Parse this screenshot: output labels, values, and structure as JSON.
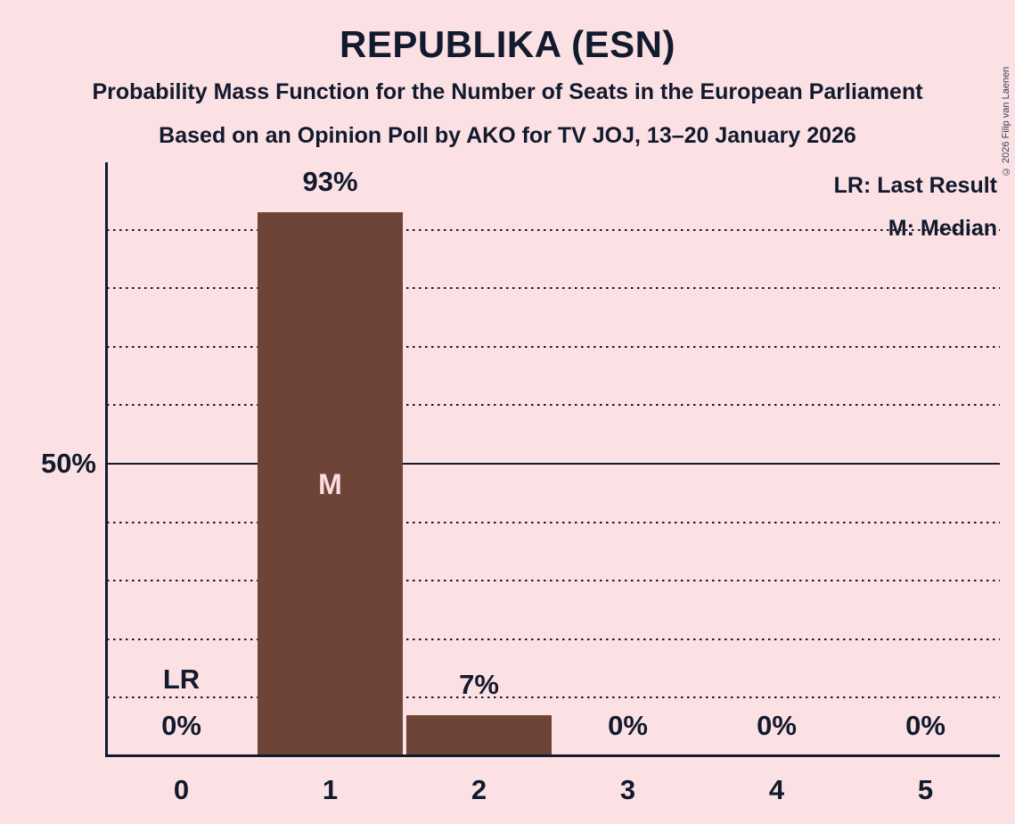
{
  "header": {
    "title": "REPUBLIKA (ESN)",
    "subtitle1": "Probability Mass Function for the Number of Seats in the European Parliament",
    "subtitle2": "Based on an Opinion Poll by AKO for TV JOJ, 13–20 January 2026"
  },
  "copyright": "© 2026 Filip van Laenen",
  "legend": {
    "lr": "LR: Last Result",
    "m": "M: Median"
  },
  "colors": {
    "background": "#fce1e4",
    "bar": "#6f4438",
    "text": "#121a2e",
    "bar_inner_label": "#fadce1",
    "gridline": "#121a2e"
  },
  "chart_data": {
    "type": "bar",
    "title": "REPUBLIKA (ESN)",
    "categories": [
      "0",
      "1",
      "2",
      "3",
      "4",
      "5"
    ],
    "values": [
      0,
      93,
      7,
      0,
      0,
      0
    ],
    "value_labels": [
      "0%",
      "93%",
      "7%",
      "0%",
      "0%",
      "0%"
    ],
    "xlabel": "",
    "ylabel": "",
    "ylim": [
      0,
      100
    ],
    "y_axis_tick": "50%",
    "gridlines_pct": [
      10,
      20,
      30,
      40,
      50,
      60,
      70,
      80,
      90
    ],
    "solid_gridline_pct": 50,
    "grid": "horizontal dotted, 50% solid",
    "legend_position": "top-right",
    "median_seat_index": 1,
    "last_result_seat_index": 0,
    "markers": {
      "median": "M",
      "last_result": "LR"
    }
  }
}
